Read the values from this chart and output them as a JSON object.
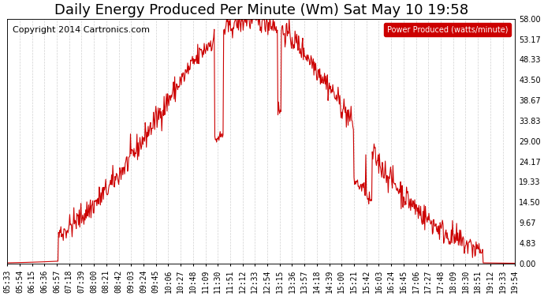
{
  "title": "Daily Energy Produced Per Minute (Wm) Sat May 10 19:58",
  "copyright": "Copyright 2014 Cartronics.com",
  "legend_label": "Power Produced (watts/minute)",
  "legend_bg": "#cc0000",
  "legend_text_color": "#ffffff",
  "line_color": "#cc0000",
  "background_color": "#ffffff",
  "grid_color": "#cccccc",
  "yticks": [
    0.0,
    4.83,
    9.67,
    14.5,
    19.33,
    24.17,
    29.0,
    33.83,
    38.67,
    43.5,
    48.33,
    53.17,
    58.0
  ],
  "ymax": 58.0,
  "ymin": 0.0,
  "title_fontsize": 13,
  "axis_fontsize": 7,
  "copyright_fontsize": 8,
  "tick_step": 21
}
